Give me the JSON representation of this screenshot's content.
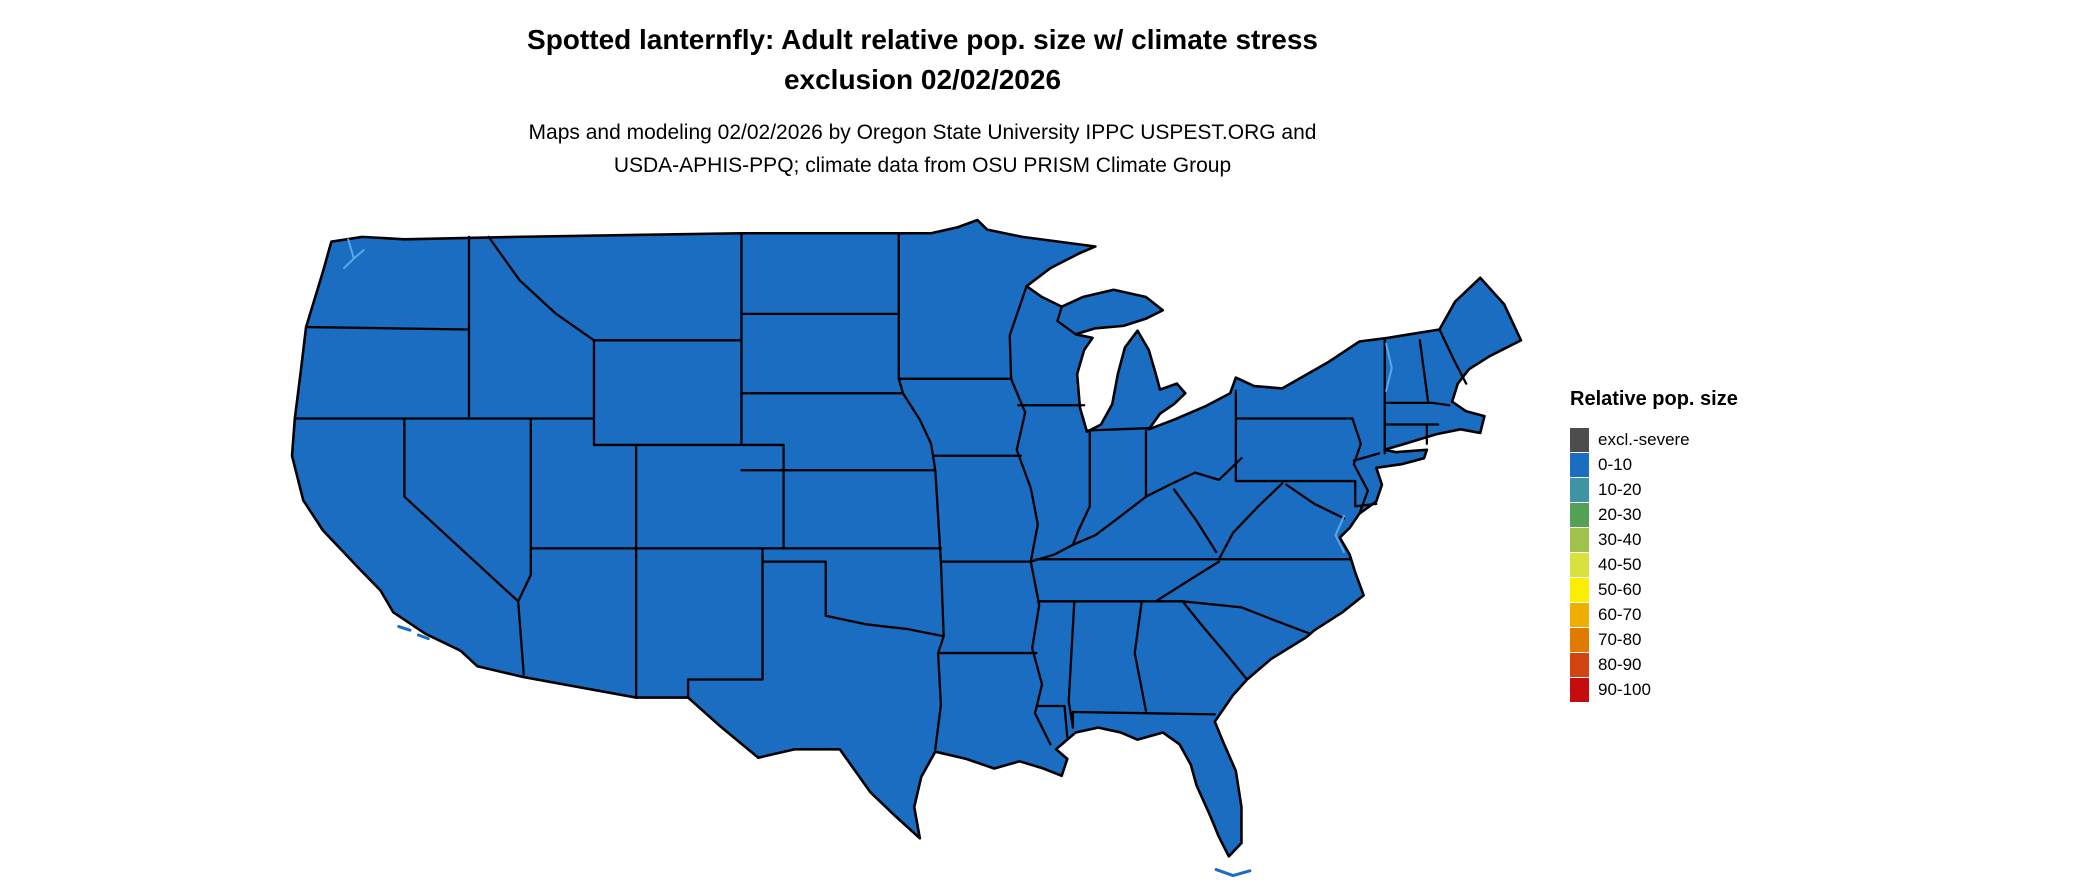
{
  "title": {
    "line1": "Spotted lanternfly: Adult relative pop. size w/ climate stress",
    "line2": "exclusion 02/02/2026"
  },
  "subtitle": {
    "line1": "Maps and modeling 02/02/2026 by Oregon State University IPPC USPEST.ORG and",
    "line2": "USDA-APHIS-PPQ; climate data from OSU PRISM Climate Group"
  },
  "map": {
    "region": "Continental United States choropleth",
    "uniform_category": "0-10",
    "fill_color": "#1b6dc1",
    "border_color": "#000000",
    "water_color": "#58a8e8"
  },
  "legend": {
    "title": "Relative pop. size",
    "items": [
      {
        "label": "excl.-severe",
        "color": "#4d4d4d"
      },
      {
        "label": "0-10",
        "color": "#1b6dc1"
      },
      {
        "label": "10-20",
        "color": "#3e93a5"
      },
      {
        "label": "20-30",
        "color": "#52a154"
      },
      {
        "label": "30-40",
        "color": "#a0c24d"
      },
      {
        "label": "40-50",
        "color": "#d7e23f"
      },
      {
        "label": "50-60",
        "color": "#fdee00"
      },
      {
        "label": "60-70",
        "color": "#efaf00"
      },
      {
        "label": "70-80",
        "color": "#e17b00"
      },
      {
        "label": "80-90",
        "color": "#d2430f"
      },
      {
        "label": "90-100",
        "color": "#c50d0d"
      }
    ]
  }
}
